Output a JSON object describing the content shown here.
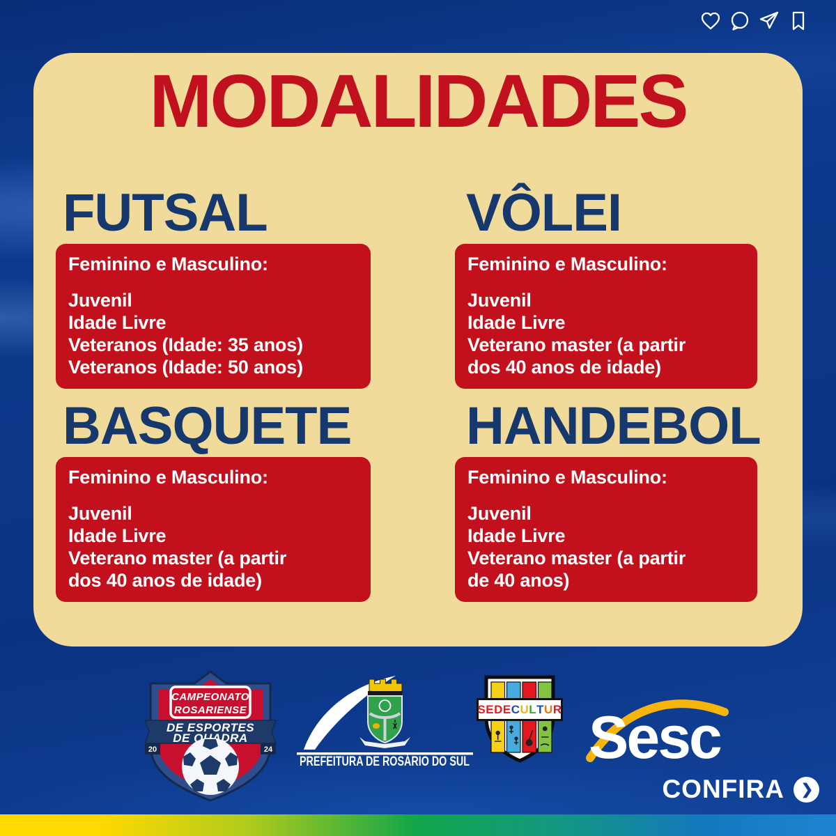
{
  "social": {
    "icons": [
      "like-icon",
      "comment-icon",
      "share-icon",
      "save-icon"
    ]
  },
  "card": {
    "title": "MODALIDADES",
    "sections": [
      {
        "heading": "FUTSAL",
        "intro": "Feminino e Masculino:",
        "lines": [
          "Juvenil",
          "Idade Livre",
          "Veteranos (Idade: 35 anos)",
          "Veteranos (Idade: 50 anos)"
        ]
      },
      {
        "heading": "VÔLEI",
        "intro": "Feminino e Masculino:",
        "lines": [
          "Juvenil",
          "Idade Livre",
          "Veterano master (a partir\ndos 40 anos de idade)"
        ]
      },
      {
        "heading": "BASQUETE",
        "intro": "Feminino e Masculino:",
        "lines": [
          "Juvenil",
          "Idade Livre",
          "Veterano master (a partir\ndos 40 anos de idade)"
        ]
      },
      {
        "heading": "HANDEBOL",
        "intro": "Feminino e Masculino:",
        "lines": [
          "Juvenil",
          "Idade Livre",
          "Veterano master (a partir\nde 40 anos)"
        ]
      }
    ]
  },
  "footer": {
    "championship": {
      "line1": "CAMPEONATO",
      "line2": "ROSARIENSE",
      "line3": "DE ESPORTES",
      "line4": "DE QUADRA",
      "year_left": "20",
      "year_right": "24"
    },
    "prefeitura": {
      "label": "PREFEITURA DE ROSÁRIO DO SUL"
    },
    "sedecultur": {
      "name": "SEDECULTUR",
      "letters": [
        {
          "ch": "S",
          "color": "#E31E24"
        },
        {
          "ch": "E",
          "color": "#E31E24"
        },
        {
          "ch": "D",
          "color": "#E31E24"
        },
        {
          "ch": "E",
          "color": "#E31E24"
        },
        {
          "ch": "C",
          "color": "#1F4FA3"
        },
        {
          "ch": "U",
          "color": "#F5B50C"
        },
        {
          "ch": "L",
          "color": "#43A336"
        },
        {
          "ch": "T",
          "color": "#1F4FA3"
        },
        {
          "ch": "U",
          "color": "#E8731A"
        },
        {
          "ch": "R",
          "color": "#D01E22"
        }
      ]
    },
    "sesc": {
      "label": "Sesc"
    },
    "confira": {
      "label": "CONFIRA"
    }
  },
  "colors": {
    "background_blue": "#0C3587",
    "card_cream": "#F1DB9B",
    "accent_red": "#C2111C",
    "heading_navy": "#17386D",
    "strip_gradient": [
      "#FFD900",
      "#AECB1E",
      "#0FA64A",
      "#12997E",
      "#1478BE",
      "#1F83D2"
    ]
  }
}
